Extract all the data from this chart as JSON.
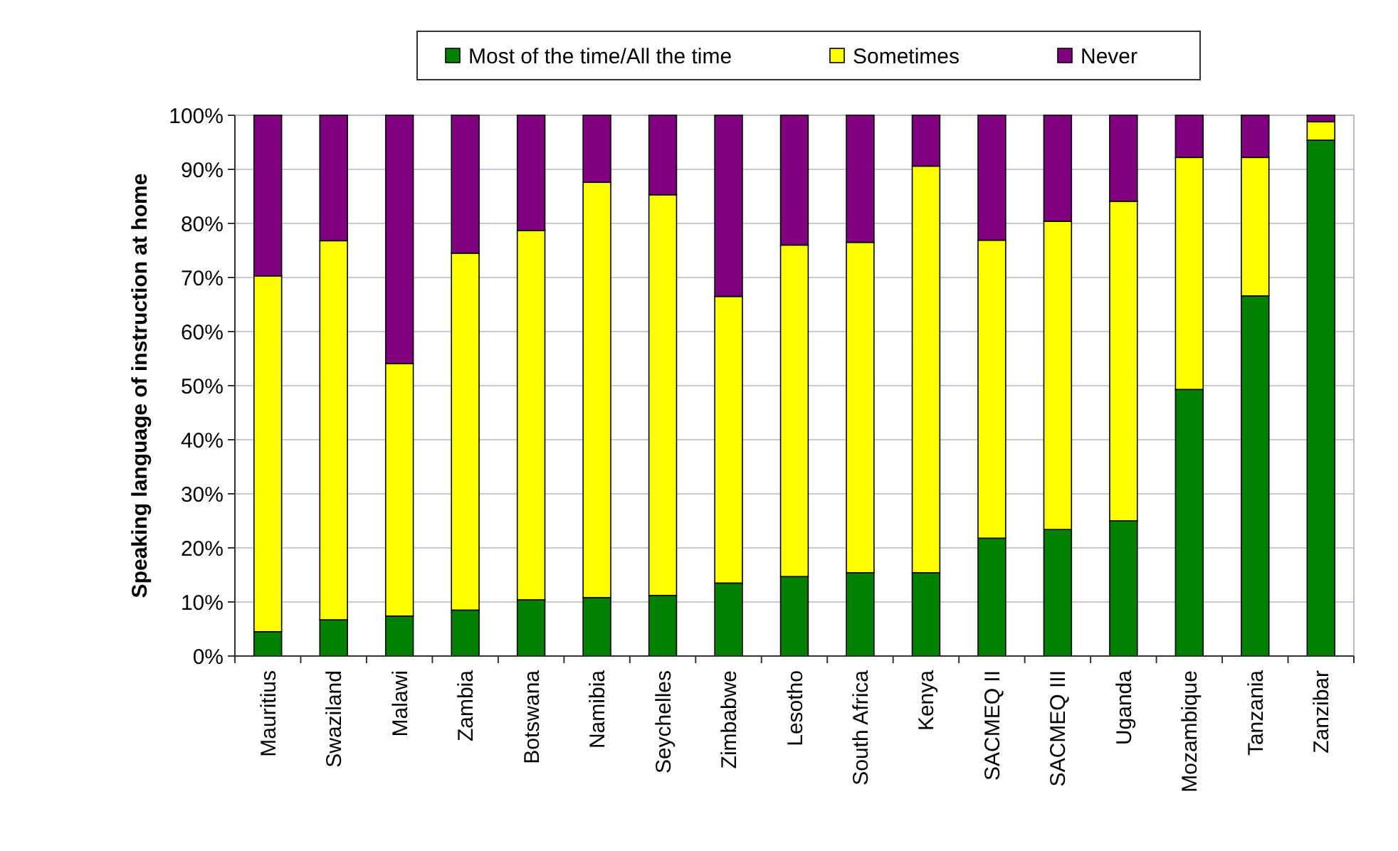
{
  "chart_data": {
    "type": "bar",
    "stacked": true,
    "ylabel": "Speaking language of instruction at home",
    "categories": [
      "Mauritius",
      "Swaziland",
      "Malawi",
      "Zambia",
      "Botswana",
      "Namibia",
      "Seychelles",
      "Zimbabwe",
      "Lesotho",
      "South Africa",
      "Kenya",
      "SACMEQ II",
      "SACMEQ III",
      "Uganda",
      "Mozambique",
      "Tanzania",
      "Zanzibar"
    ],
    "series": [
      {
        "name": "Most of the time/All the time",
        "color": "#008000",
        "values": [
          4.5,
          6.7,
          7.4,
          8.5,
          10.4,
          10.8,
          11.2,
          13.5,
          14.7,
          15.4,
          15.4,
          21.8,
          23.4,
          25,
          49.3,
          66.6,
          95.4
        ]
      },
      {
        "name": "Sometimes",
        "color": "#ffff00",
        "values": [
          65.8,
          70.1,
          46.7,
          66,
          68.3,
          76.8,
          74.1,
          53,
          61.3,
          61.1,
          75.2,
          55.1,
          57,
          59.1,
          42.9,
          25.6,
          3.4
        ]
      },
      {
        "name": "Never",
        "color": "#800080",
        "values": [
          29.7,
          23.2,
          45.9,
          25.5,
          21.3,
          12.4,
          14.7,
          33.5,
          24,
          23.5,
          9.4,
          23.1,
          19.6,
          15.9,
          7.8,
          7.8,
          1.2
        ]
      }
    ],
    "ylim": [
      0,
      100
    ],
    "yticks": [
      {
        "value": 0,
        "label": "0%"
      },
      {
        "value": 10,
        "label": "10%"
      },
      {
        "value": 20,
        "label": "20%"
      },
      {
        "value": 30,
        "label": "30%"
      },
      {
        "value": 40,
        "label": "40%"
      },
      {
        "value": 50,
        "label": "50%"
      },
      {
        "value": 60,
        "label": "60%"
      },
      {
        "value": 70,
        "label": "70%"
      },
      {
        "value": 80,
        "label": "80%"
      },
      {
        "value": 90,
        "label": "90%"
      },
      {
        "value": 100,
        "label": "100%"
      }
    ],
    "grid": "y",
    "legend": "top"
  }
}
